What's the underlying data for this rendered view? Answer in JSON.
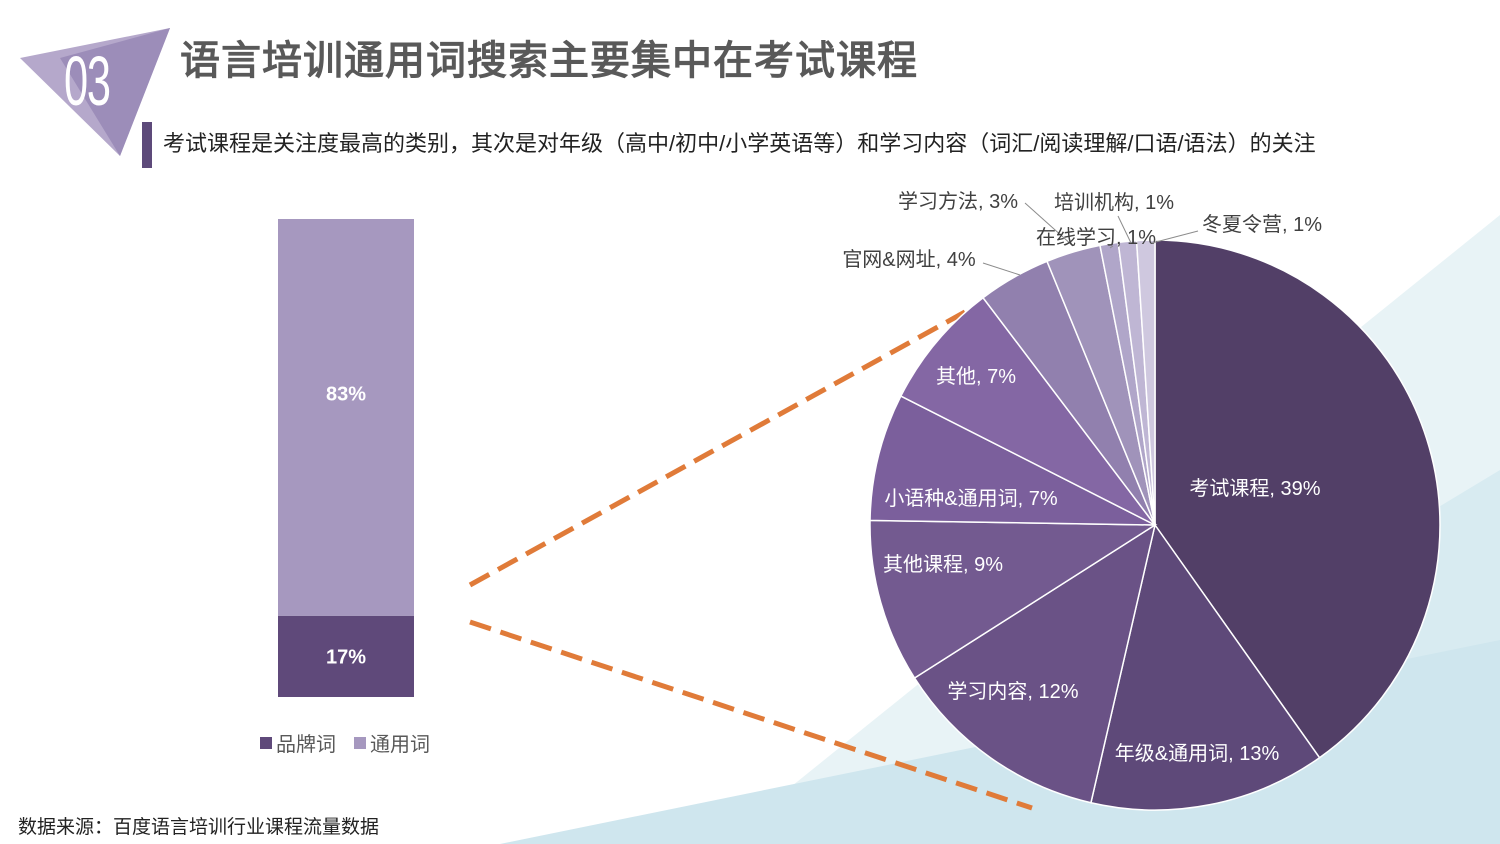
{
  "header": {
    "section_number": "03",
    "title": "语言培训通用词搜索主要集中在考试课程",
    "subtitle": "考试课程是关注度最高的类别，其次是对年级（高中/初中/小学英语等）和学习内容（词汇/阅读理解/口语/语法）的关注"
  },
  "footer": {
    "source": "数据来源：百度语言培训行业课程流量数据"
  },
  "colors": {
    "accent": "#5d4a7a",
    "brand_bar": "#5f497a",
    "generic_bar": "#a698bf",
    "connector": "#e07b39"
  },
  "chart_data": [
    {
      "type": "bar",
      "stacked": true,
      "categories": [
        ""
      ],
      "series": [
        {
          "name": "品牌词",
          "values": [
            17
          ],
          "label": "17%",
          "color": "#5f497a"
        },
        {
          "name": "通用词",
          "values": [
            83
          ],
          "label": "83%",
          "color": "#a698bf"
        }
      ],
      "ylim": [
        0,
        100
      ],
      "legend": "bottom"
    },
    {
      "type": "pie",
      "slices": [
        {
          "name": "考试课程",
          "value": 39,
          "label": "考试课程, 39%",
          "color": "#523f67"
        },
        {
          "name": "年级&通用词",
          "value": 13,
          "label": "年级&通用词, 13%",
          "color": "#5e4979"
        },
        {
          "name": "学习内容",
          "value": 12,
          "label": "学习内容, 12%",
          "color": "#6a5286"
        },
        {
          "name": "其他课程",
          "value": 9,
          "label": "其他课程, 9%",
          "color": "#735a90"
        },
        {
          "name": "小语种&通用词",
          "value": 7,
          "label": "小语种&通用词, 7%",
          "color": "#7b5f9c"
        },
        {
          "name": "其他",
          "value": 7,
          "label": "其他, 7%",
          "color": "#8467a4"
        },
        {
          "name": "官网&网址",
          "value": 4,
          "label": "官网&网址, 4%",
          "color": "#9180ae"
        },
        {
          "name": "学习方法",
          "value": 3,
          "label": "学习方法, 3%",
          "color": "#a093ba"
        },
        {
          "name": "在线学习",
          "value": 1,
          "label": "在线学习, 1%",
          "color": "#b0a6c9"
        },
        {
          "name": "培训机构",
          "value": 1,
          "label": "培训机构, 1%",
          "color": "#bfb6d4"
        },
        {
          "name": "冬夏令营",
          "value": 1,
          "label": "冬夏令营, 1%",
          "color": "#cfc8df"
        }
      ]
    }
  ]
}
